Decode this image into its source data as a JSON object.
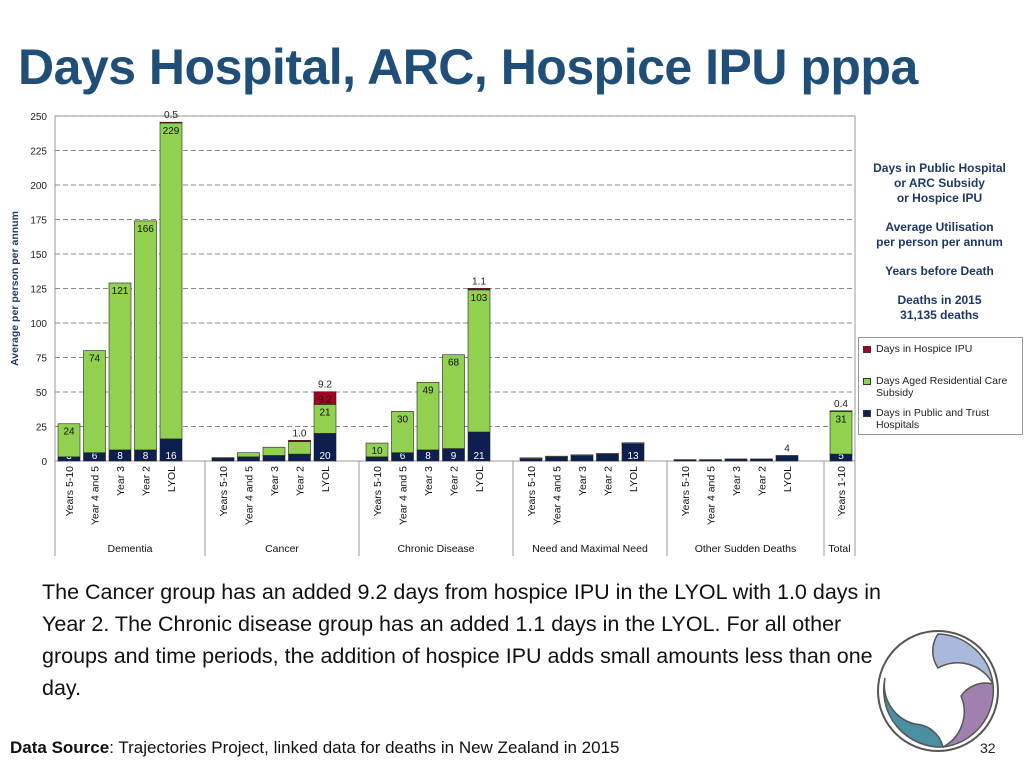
{
  "slide": {
    "title": "Days Hospital, ARC, Hospice IPU pppa",
    "caption": "The Cancer group has an added 9.2 days from hospice IPU in the LYOL with 1.0 days in Year 2. The Chronic disease group has an added 1.1 days in the LYOL. For all other groups and time periods, the addition of hospice IPU adds small amounts less than one day.",
    "source_label": "Data Source",
    "source_text": ": Trajectories Project, linked data for deaths in New Zealand in 2015",
    "page_number": "32"
  },
  "side_notes": {
    "line1": "Days in Public Hospital",
    "line2": "or ARC  Subsidy",
    "line3": "or Hospice IPU",
    "line4": "Average Utilisation",
    "line5": "per person per annum",
    "line6": "Years before Death",
    "line7": "Deaths in 2015",
    "line8": "31,135 deaths"
  },
  "legend": {
    "hospice": "Days in Hospice IPU",
    "arc": "Days Aged Residential Care Subsidy",
    "hospital": "Days in Public and Trust Hospitals"
  },
  "colors": {
    "hospital": "#0D1F4F",
    "arc": "#92D050",
    "hospice": "#A50021",
    "title": "#1F4E79"
  },
  "chart_data": {
    "type": "bar",
    "stacked": true,
    "ylabel": "Average per person per annum",
    "ylim": [
      0,
      250
    ],
    "yticks": [
      0,
      25,
      50,
      75,
      100,
      125,
      150,
      175,
      200,
      225,
      250
    ],
    "grid": true,
    "legend_position": "right",
    "groups": [
      {
        "name": "Dementia",
        "categories": [
          "Years 5-10",
          "Year 4 and 5",
          "Year 3",
          "Year 2",
          "LYOL"
        ]
      },
      {
        "name": "Cancer",
        "categories": [
          "Years 5-10",
          "Year 4 and 5",
          "Year 3",
          "Year 2",
          "LYOL"
        ]
      },
      {
        "name": "Chronic Disease",
        "categories": [
          "Years 5-10",
          "Year 4 and 5",
          "Year 3",
          "Year 2",
          "LYOL"
        ]
      },
      {
        "name": "Need and Maximal Need",
        "categories": [
          "Years 5-10",
          "Year 4 and 5",
          "Year 3",
          "Year 2",
          "LYOL"
        ]
      },
      {
        "name": "Other Sudden Deaths",
        "categories": [
          "Years 5-10",
          "Year 4 and 5",
          "Year 3",
          "Year 2",
          "LYOL"
        ]
      },
      {
        "name": "Total",
        "categories": [
          "Years 1-10"
        ]
      }
    ],
    "series": [
      {
        "name": "Days in Public and Trust Hospitals",
        "key": "hospital",
        "values": [
          3,
          6,
          8,
          8,
          16,
          2,
          3,
          4,
          5,
          20,
          3,
          6,
          8,
          9,
          21,
          2,
          3,
          4,
          5,
          13,
          1,
          1,
          1.5,
          1.5,
          4,
          5
        ],
        "labels": [
          "3",
          "6",
          "8",
          "8",
          "16",
          "",
          "",
          "",
          "",
          "20",
          "",
          "6",
          "8",
          "9",
          "21",
          "",
          "",
          "",
          "",
          "13",
          "",
          "",
          "",
          "",
          "",
          "5"
        ]
      },
      {
        "name": "Days Aged Residential Care Subsidy",
        "key": "arc",
        "values": [
          24,
          74,
          121,
          166,
          229,
          0.5,
          3,
          6,
          9,
          21,
          10,
          30,
          49,
          68,
          103,
          0.3,
          0.5,
          0.5,
          0.5,
          0.2,
          0,
          0,
          0,
          0,
          0,
          31
        ],
        "labels": [
          "24",
          "74",
          "121",
          "166",
          "229",
          "",
          "",
          "",
          "",
          "21",
          "10",
          "30",
          "49",
          "68",
          "103",
          "",
          "",
          "",
          "",
          "",
          "",
          "",
          "",
          "",
          "",
          "31"
        ]
      },
      {
        "name": "Days in Hospice IPU",
        "key": "hospice",
        "values": [
          0,
          0,
          0,
          0,
          0.5,
          0,
          0,
          0,
          1.0,
          9.2,
          0,
          0,
          0,
          0,
          1.1,
          0,
          0,
          0,
          0,
          0,
          0,
          0,
          0,
          0,
          0,
          0.4
        ],
        "labels": [
          "",
          "",
          "",
          "",
          "",
          "",
          "",
          "",
          "",
          "9.2",
          "",
          "",
          "",
          "",
          "",
          "",
          "",
          "",
          "",
          "",
          "",
          "",
          "",
          "",
          "",
          ""
        ]
      }
    ],
    "top_labels": [
      "",
      "",
      "",
      "",
      "0.5",
      "",
      "",
      "",
      "1.0",
      "9.2",
      "",
      "",
      "",
      "",
      "1.1",
      "",
      "",
      "",
      "",
      "",
      "",
      "",
      "",
      "",
      "4",
      "0.4"
    ]
  }
}
